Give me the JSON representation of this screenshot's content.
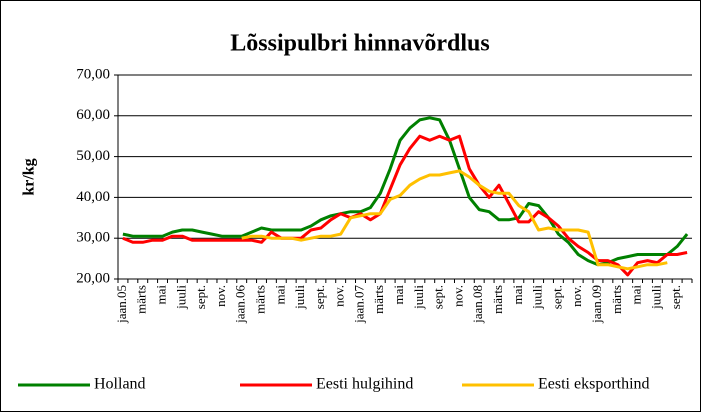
{
  "chart_data": {
    "type": "line",
    "title": "Lõssipulbri hinnavõrdlus",
    "y_label": "kr/kg",
    "categories": [
      "jaan.05",
      null,
      "märts",
      null,
      "mai",
      null,
      "juuli",
      null,
      "sept.",
      null,
      "nov.",
      null,
      "jaan.06",
      null,
      "märts",
      null,
      "mai",
      null,
      "juuli",
      null,
      "sept.",
      null,
      "nov.",
      null,
      "jaan.07",
      null,
      "märts",
      null,
      "mai",
      null,
      "juuli",
      null,
      "sept.",
      null,
      "nov.",
      null,
      "jaan.08",
      null,
      "märts",
      null,
      "mai",
      null,
      "juuli",
      null,
      "sept.",
      null,
      "nov.",
      null,
      "jaan.09",
      null,
      "märts",
      null,
      "mai",
      null,
      "juuli",
      null,
      "sept.",
      null
    ],
    "series": [
      {
        "name": "Holland",
        "color": "#008000",
        "values": [
          31,
          30.5,
          30.5,
          30.5,
          30.5,
          31.5,
          32,
          32,
          31.5,
          31,
          30.5,
          30.5,
          30.5,
          31.5,
          32.5,
          32,
          32,
          32,
          32,
          33,
          34.5,
          35.5,
          36,
          36.5,
          36.5,
          37.5,
          41,
          47,
          54,
          57,
          59,
          59.5,
          59,
          54,
          47,
          40,
          37,
          36.5,
          34.5,
          34.5,
          35,
          38.5,
          38,
          35,
          31,
          29,
          26,
          24.5,
          23.5,
          24,
          25,
          25.5,
          26,
          26,
          26,
          26,
          28,
          31
        ]
      },
      {
        "name": "Eesti hulgihind",
        "color": "#ff0000",
        "values": [
          30,
          29,
          29,
          29.5,
          29.5,
          30.5,
          30.5,
          29.5,
          29.5,
          29.5,
          29.5,
          29.5,
          29.5,
          29.5,
          29,
          31.5,
          30,
          30,
          30,
          32,
          32.5,
          34.5,
          36,
          35,
          36,
          34.5,
          36,
          42,
          48,
          52,
          55,
          54,
          55,
          54,
          55,
          47,
          43,
          40,
          43,
          38.5,
          34,
          34,
          36.5,
          35,
          33,
          30,
          28,
          26.5,
          24.5,
          24.5,
          23.5,
          21,
          24,
          24.5,
          24,
          26,
          26,
          26.5
        ]
      },
      {
        "name": "Eesti eksporthind",
        "color": "#ffc000",
        "values": [
          null,
          null,
          null,
          null,
          null,
          null,
          null,
          null,
          null,
          null,
          null,
          null,
          30,
          30.5,
          30.5,
          30,
          30,
          30,
          29.5,
          30,
          30.5,
          30.5,
          31,
          35,
          35.5,
          36,
          36,
          39.5,
          40.5,
          43,
          44.5,
          45.5,
          45.5,
          46,
          46.5,
          45,
          43,
          41.5,
          41,
          41,
          38,
          36.5,
          32,
          32.5,
          32,
          32,
          32,
          31.5,
          23.5,
          23.5,
          23,
          22.5,
          23,
          23.5,
          23.5,
          24,
          null,
          null
        ]
      }
    ],
    "ylim": [
      20,
      70
    ],
    "yticks": [
      {
        "value": 20,
        "label": "20,00"
      },
      {
        "value": 30,
        "label": "30,00"
      },
      {
        "value": 40,
        "label": "40,00"
      },
      {
        "value": 50,
        "label": "50,00"
      },
      {
        "value": 60,
        "label": "60,00"
      },
      {
        "value": 70,
        "label": "70,00"
      }
    ],
    "grid": true
  }
}
